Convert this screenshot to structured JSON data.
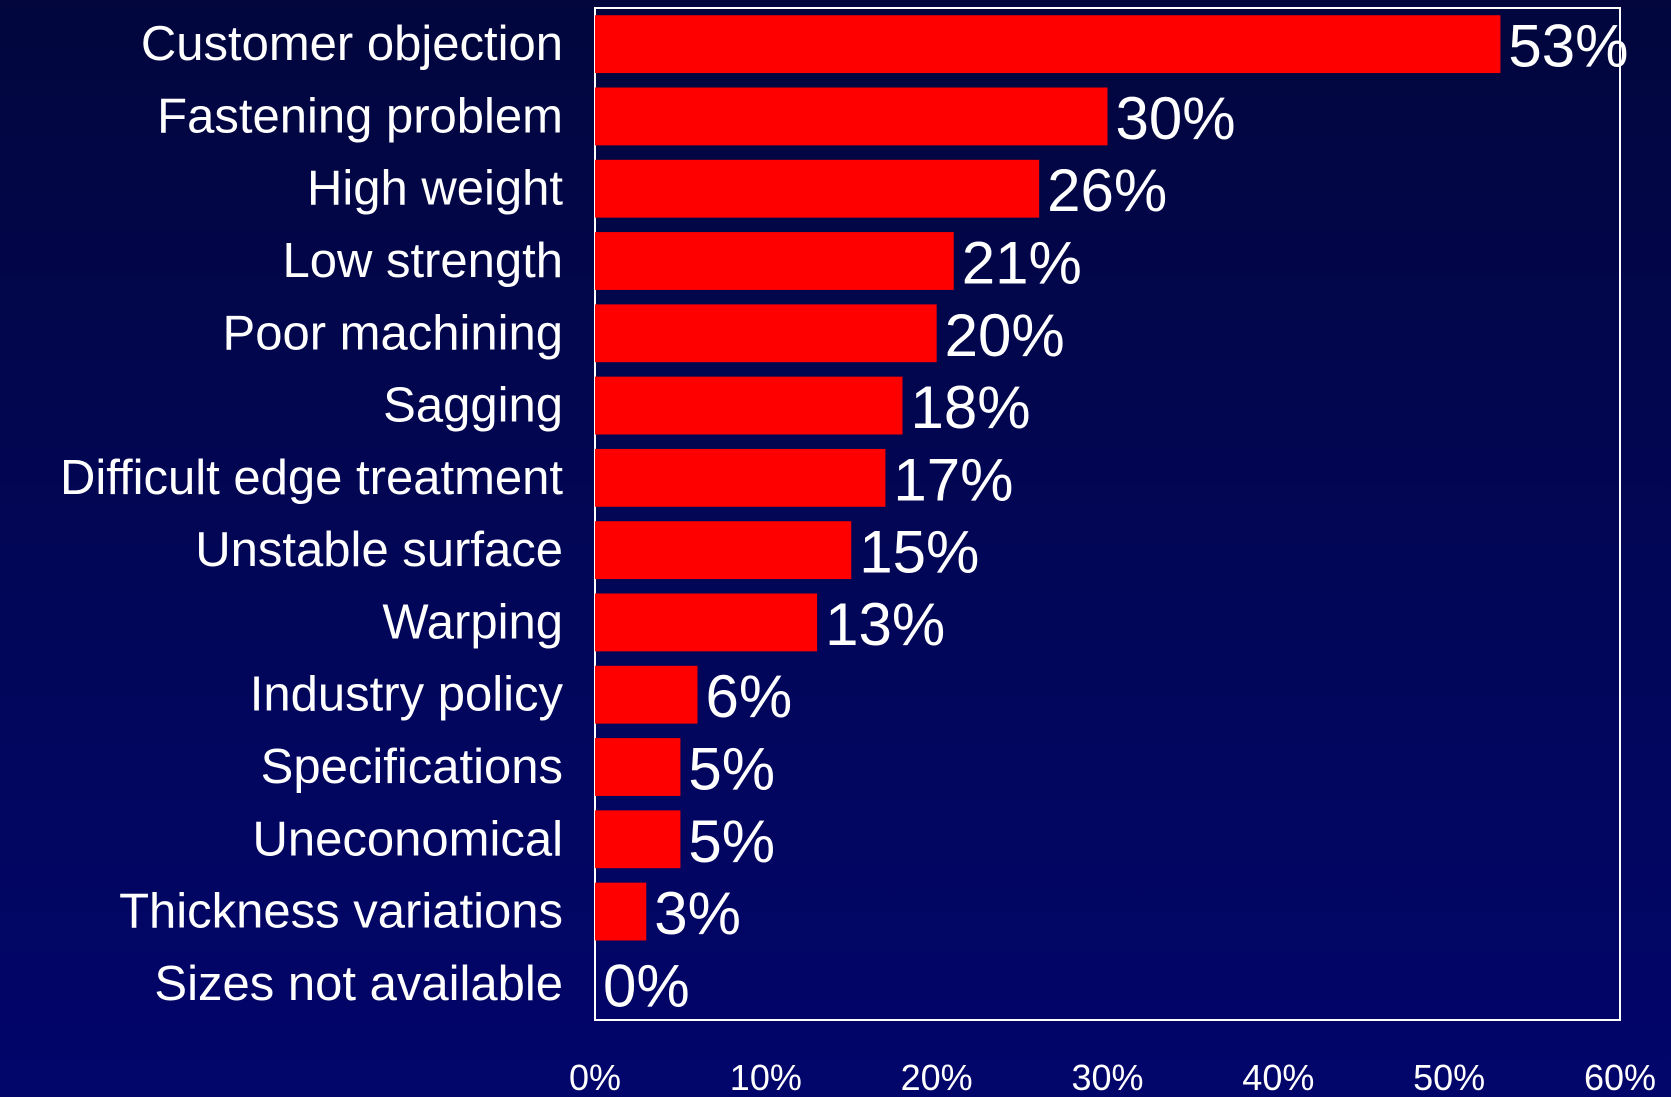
{
  "chart_data": {
    "type": "bar",
    "orientation": "horizontal",
    "categories": [
      "Customer objection",
      "Fastening problem",
      "High weight",
      "Low strength",
      "Poor machining",
      "Sagging",
      "Difficult edge treatment",
      "Unstable surface",
      "Warping",
      "Industry policy",
      "Specifications",
      "Uneconomical",
      "Thickness variations",
      "Sizes not available"
    ],
    "values": [
      53,
      30,
      26,
      21,
      20,
      18,
      17,
      15,
      13,
      6,
      5,
      5,
      3,
      0
    ],
    "value_labels": [
      "53%",
      "30%",
      "26%",
      "21%",
      "20%",
      "18%",
      "17%",
      "15%",
      "13%",
      "6%",
      "5%",
      "5%",
      "3%",
      "0%"
    ],
    "xlim": [
      0,
      60
    ],
    "x_ticks": [
      0,
      10,
      20,
      30,
      40,
      50,
      60
    ],
    "x_tick_labels": [
      "0%",
      "10%",
      "20%",
      "30%",
      "40%",
      "50%",
      "60%"
    ],
    "title": "",
    "xlabel": "",
    "ylabel": "",
    "grid": false,
    "legend": "none"
  },
  "colors": {
    "background": "#02065a",
    "bar": "#ff0000",
    "text": "#ffffff",
    "frame": "#ffffff"
  }
}
